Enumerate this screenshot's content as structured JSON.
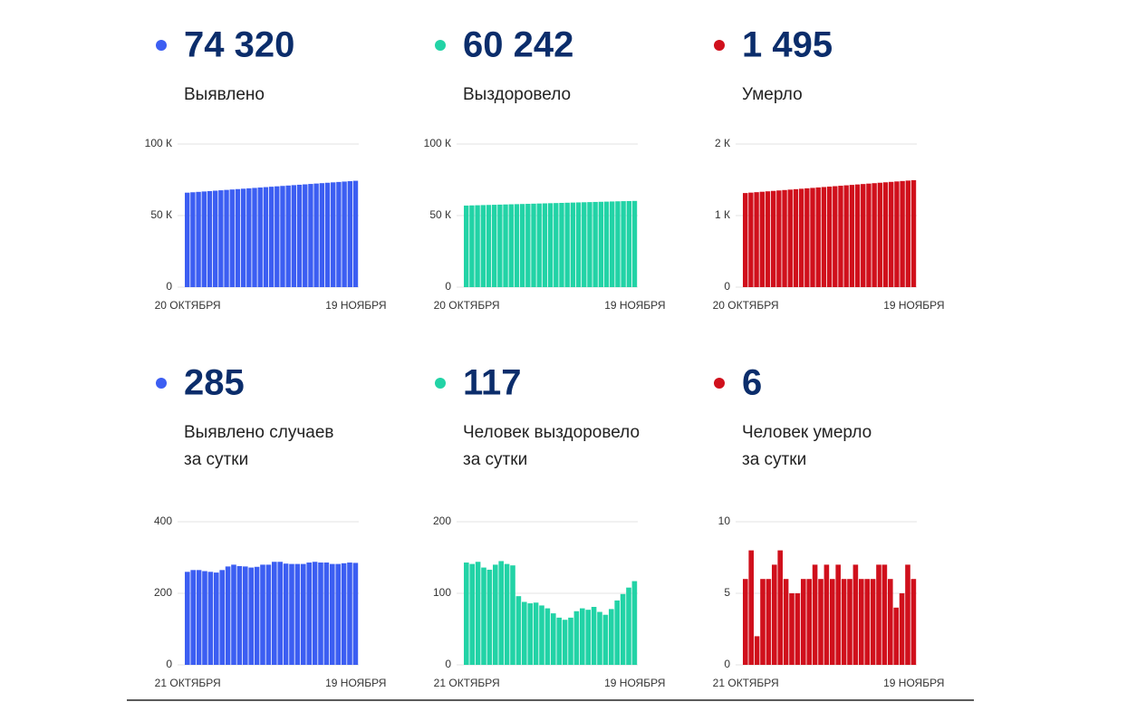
{
  "chart_data": [
    {
      "type": "bar",
      "title": "74 320",
      "subtitle": [
        "Выявлено"
      ],
      "color": "#3c5ef2",
      "categories": [
        "20 ОКТЯБРЯ",
        null,
        null,
        null,
        null,
        null,
        null,
        null,
        null,
        null,
        null,
        null,
        null,
        null,
        null,
        null,
        null,
        null,
        null,
        null,
        null,
        null,
        null,
        null,
        null,
        null,
        null,
        null,
        null,
        null,
        "19 НОЯБРЯ"
      ],
      "values": [
        66010,
        66287,
        66564,
        66841,
        67118,
        67395,
        67672,
        67949,
        68226,
        68503,
        68780,
        69057,
        69334,
        69611,
        69888,
        70165,
        70442,
        70719,
        70996,
        71273,
        71550,
        71827,
        72104,
        72381,
        72658,
        72935,
        73212,
        73489,
        73766,
        74043,
        74320
      ],
      "ylim": [
        0,
        100000
      ],
      "yticks": [
        0,
        {
          "value": 50000,
          "label": "50 К"
        },
        {
          "value": 100000,
          "label": "100 К"
        }
      ],
      "grid": true
    },
    {
      "type": "bar",
      "title": "60 242",
      "subtitle": [
        "Выздоровело"
      ],
      "color": "#22d3a6",
      "categories": [
        "20 ОКТЯБРЯ",
        null,
        null,
        null,
        null,
        null,
        null,
        null,
        null,
        null,
        null,
        null,
        null,
        null,
        null,
        null,
        null,
        null,
        null,
        null,
        null,
        null,
        null,
        null,
        null,
        null,
        null,
        null,
        null,
        null,
        "19 НОЯБРЯ"
      ],
      "values": [
        57000,
        57110,
        57220,
        57330,
        57440,
        57550,
        57660,
        57770,
        57880,
        57990,
        58100,
        58210,
        58320,
        58430,
        58540,
        58650,
        58760,
        58870,
        58980,
        59090,
        59200,
        59310,
        59420,
        59530,
        59640,
        59750,
        59860,
        59970,
        60080,
        60160,
        60242
      ],
      "ylim": [
        0,
        100000
      ],
      "yticks": [
        0,
        {
          "value": 50000,
          "label": "50 К"
        },
        {
          "value": 100000,
          "label": "100 К"
        }
      ],
      "grid": true
    },
    {
      "type": "bar",
      "title": "1 495",
      "subtitle": [
        "Умерло"
      ],
      "color": "#d0101c",
      "categories": [
        "20 ОКТЯБРЯ",
        null,
        null,
        null,
        null,
        null,
        null,
        null,
        null,
        null,
        null,
        null,
        null,
        null,
        null,
        null,
        null,
        null,
        null,
        null,
        null,
        null,
        null,
        null,
        null,
        null,
        null,
        null,
        null,
        null,
        "19 НОЯБРЯ"
      ],
      "values": [
        1315,
        1321,
        1327,
        1333,
        1339,
        1345,
        1351,
        1357,
        1363,
        1369,
        1375,
        1381,
        1387,
        1393,
        1399,
        1405,
        1411,
        1417,
        1423,
        1429,
        1435,
        1441,
        1447,
        1453,
        1459,
        1465,
        1471,
        1477,
        1483,
        1489,
        1495
      ],
      "ylim": [
        0,
        2000
      ],
      "yticks": [
        0,
        {
          "value": 1000,
          "label": "1 К"
        },
        {
          "value": 2000,
          "label": "2 К"
        }
      ],
      "grid": true
    },
    {
      "type": "bar",
      "title": "285",
      "subtitle": [
        "Выявлено случаев",
        "за сутки"
      ],
      "color": "#3c5ef2",
      "categories": [
        "21 ОКТЯБРЯ",
        null,
        null,
        null,
        null,
        null,
        null,
        null,
        null,
        null,
        null,
        null,
        null,
        null,
        null,
        null,
        null,
        null,
        null,
        null,
        null,
        null,
        null,
        null,
        null,
        null,
        null,
        null,
        null,
        "19 НОЯБРЯ"
      ],
      "values": [
        260,
        265,
        265,
        262,
        260,
        258,
        265,
        275,
        280,
        276,
        275,
        272,
        274,
        280,
        280,
        288,
        288,
        283,
        282,
        282,
        282,
        286,
        288,
        286,
        286,
        282,
        282,
        284,
        286,
        285
      ],
      "ylim": [
        0,
        400
      ],
      "yticks": [
        0,
        200,
        400
      ],
      "grid": true
    },
    {
      "type": "bar",
      "title": "117",
      "subtitle": [
        "Человек выздоровело",
        "за сутки"
      ],
      "color": "#22d3a6",
      "categories": [
        "21 ОКТЯБРЯ",
        null,
        null,
        null,
        null,
        null,
        null,
        null,
        null,
        null,
        null,
        null,
        null,
        null,
        null,
        null,
        null,
        null,
        null,
        null,
        null,
        null,
        null,
        null,
        null,
        null,
        null,
        null,
        null,
        "19 НОЯБРЯ"
      ],
      "values": [
        143,
        141,
        144,
        136,
        133,
        140,
        145,
        141,
        139,
        96,
        88,
        86,
        87,
        83,
        79,
        72,
        66,
        63,
        66,
        75,
        79,
        77,
        81,
        74,
        70,
        78,
        90,
        99,
        108,
        117
      ],
      "ylim": [
        0,
        200
      ],
      "yticks": [
        0,
        100,
        200
      ],
      "grid": true
    },
    {
      "type": "bar",
      "title": "6",
      "subtitle": [
        "Человек умерло",
        "за сутки"
      ],
      "color": "#d0101c",
      "categories": [
        "21 ОКТЯБРЯ",
        null,
        null,
        null,
        null,
        null,
        null,
        null,
        null,
        null,
        null,
        null,
        null,
        null,
        null,
        null,
        null,
        null,
        null,
        null,
        null,
        null,
        null,
        null,
        null,
        null,
        null,
        null,
        null,
        "19 НОЯБРЯ"
      ],
      "values": [
        6,
        8,
        2,
        6,
        6,
        7,
        8,
        6,
        5,
        5,
        6,
        6,
        7,
        6,
        7,
        6,
        7,
        6,
        6,
        7,
        6,
        6,
        6,
        7,
        7,
        6,
        4,
        5,
        7,
        6
      ],
      "ylim": [
        0,
        10
      ],
      "yticks": [
        0,
        5,
        10
      ],
      "grid": true
    }
  ]
}
